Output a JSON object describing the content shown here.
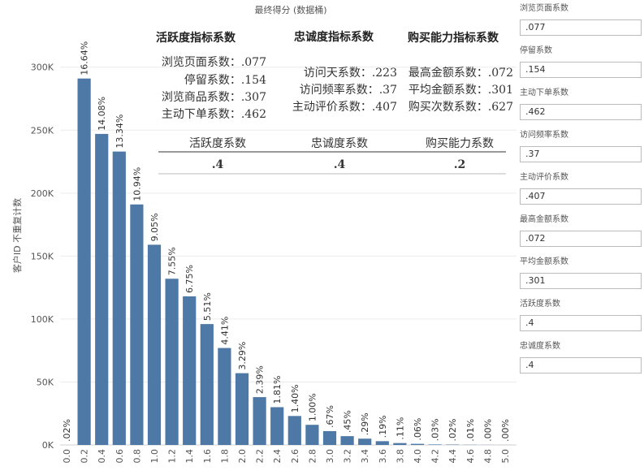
{
  "chart_data": {
    "type": "bar",
    "title": "最终得分 (数据桶)",
    "ylabel": "客户ID 不重复计数",
    "categories": [
      "0.0",
      "0.2",
      "0.4",
      "0.6",
      "0.8",
      "1.0",
      "1.2",
      "1.4",
      "1.6",
      "1.8",
      "2.0",
      "2.2",
      "2.4",
      "2.6",
      "2.8",
      "3.0",
      "3.2",
      "3.4",
      "3.6",
      "3.8",
      "4.0",
      "4.2",
      "4.4",
      "4.6",
      "4.8",
      "5.0"
    ],
    "values": [
      0,
      291000,
      247000,
      233000,
      191000,
      159000,
      132000,
      118000,
      96000,
      77000,
      57000,
      38000,
      30000,
      23000,
      16000,
      11000,
      7000,
      5000,
      3000,
      1500,
      900,
      400,
      300,
      150,
      60,
      40
    ],
    "data_labels": [
      ".02%",
      "16.64%",
      "14.08%",
      "13.34%",
      "10.94%",
      "9.05%",
      "7.55%",
      "6.75%",
      "5.51%",
      "4.41%",
      "3.29%",
      "2.39%",
      "1.81%",
      "1.40%",
      "1.00%",
      ".67%",
      ".45%",
      ".29%",
      ".19%",
      ".11%",
      ".06%",
      ".03%",
      ".02%",
      ".01%",
      ".00%",
      ".00%"
    ],
    "y_ticks": [
      {
        "value": 0,
        "label": "0K"
      },
      {
        "value": 50000,
        "label": "50K"
      },
      {
        "value": 100000,
        "label": "100K"
      },
      {
        "value": 150000,
        "label": "150K"
      },
      {
        "value": 200000,
        "label": "200K"
      },
      {
        "value": 250000,
        "label": "250K"
      },
      {
        "value": 300000,
        "label": "300K"
      }
    ],
    "ylim": [
      0,
      334000
    ],
    "bar_color": "#4e79a7",
    "grid": true
  },
  "annotations": {
    "activity": {
      "heading": "活跃度指标系数",
      "lines": [
        "浏览页面系数：.077",
        "停留系数：.154",
        "浏览商品系数：.307",
        "主动下单系数：.462"
      ]
    },
    "loyalty": {
      "heading": "忠诚度指标系数",
      "lines": [
        "访问天系数：.223",
        "访问频率系数：.37",
        "主动评价系数：.407"
      ]
    },
    "purchase": {
      "heading": "购买能力指标系数",
      "lines": [
        "最高金额系数：.072",
        "平均金额系数：.301",
        "购买次数系数：.627"
      ]
    },
    "summary_table": {
      "headers": [
        "活跃度系数",
        "忠诚度系数",
        "购买能力系数"
      ],
      "values": [
        ".4",
        ".4",
        ".2"
      ]
    }
  },
  "parameters": [
    {
      "label": "浏览页面系数",
      "value": ".077"
    },
    {
      "label": "停留系数",
      "value": ".154"
    },
    {
      "label": "主动下单系数",
      "value": ".462"
    },
    {
      "label": "访问频率系数",
      "value": ".37"
    },
    {
      "label": "主动评价系数",
      "value": ".407"
    },
    {
      "label": "最高金额系数",
      "value": ".072"
    },
    {
      "label": "平均金额系数",
      "value": ".301"
    },
    {
      "label": "活跃度系数",
      "value": ".4"
    },
    {
      "label": "忠诚度系数",
      "value": ".4"
    }
  ]
}
